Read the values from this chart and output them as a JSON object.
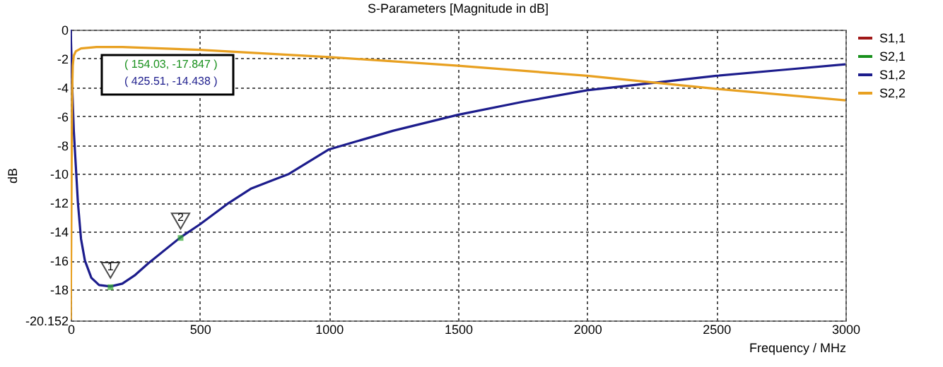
{
  "chart_data": {
    "type": "line",
    "title": "S-Parameters [Magnitude in dB]",
    "xlabel": "Frequency / MHz",
    "ylabel": "dB",
    "xlim": [
      0,
      3000
    ],
    "xticks": [
      0,
      500,
      1000,
      1500,
      2000,
      2500,
      3000
    ],
    "ylim": [
      -20.152,
      0
    ],
    "yticks": [
      0,
      -2,
      -4,
      -6,
      -8,
      -10,
      -12,
      -14,
      -16,
      -18,
      -20.152
    ],
    "grid": true,
    "legend": "top right",
    "marker": "none",
    "series": [
      {
        "name": "S1,1",
        "color": "#a01818"
      },
      {
        "name": "S2,1",
        "color": "#18901c"
      },
      {
        "name": "S1,2",
        "color": "#1c1c8c",
        "x": [
          0,
          3,
          6,
          12,
          20,
          28,
          40,
          55,
          80,
          110,
          154,
          200,
          250,
          300,
          425,
          500,
          613,
          700,
          845,
          1000,
          1250,
          1500,
          1750,
          2000,
          2250,
          2500,
          2750,
          3000
        ],
        "values": [
          0,
          -2,
          -4,
          -7,
          -9.5,
          -12,
          -14.5,
          -16,
          -17.2,
          -17.7,
          -17.8,
          -17.6,
          -17,
          -16.2,
          -14.4,
          -13.5,
          -12,
          -11,
          -10,
          -8.3,
          -7,
          -5.9,
          -5,
          -4.2,
          -3.7,
          -3.2,
          -2.8,
          -2.4
        ]
      },
      {
        "name": "S2,2",
        "color": "#e8a020",
        "x": [
          0,
          2,
          4,
          6,
          8,
          12,
          20,
          40,
          100,
          200,
          500,
          1000,
          1500,
          2000,
          2500,
          3000
        ],
        "values": [
          -20.1,
          -15,
          -8,
          -4,
          -2.5,
          -1.8,
          -1.5,
          -1.3,
          -1.2,
          -1.2,
          -1.4,
          -1.9,
          -2.5,
          -3.2,
          -4.1,
          -4.9
        ]
      }
    ],
    "annotations": [
      {
        "text": "1",
        "x": 154.03,
        "y": -17.847
      },
      {
        "text": "2",
        "x": 425.51,
        "y": -14.438
      },
      "( 154.03, -17.847 )",
      "( 425.51, -14.438 )"
    ]
  }
}
